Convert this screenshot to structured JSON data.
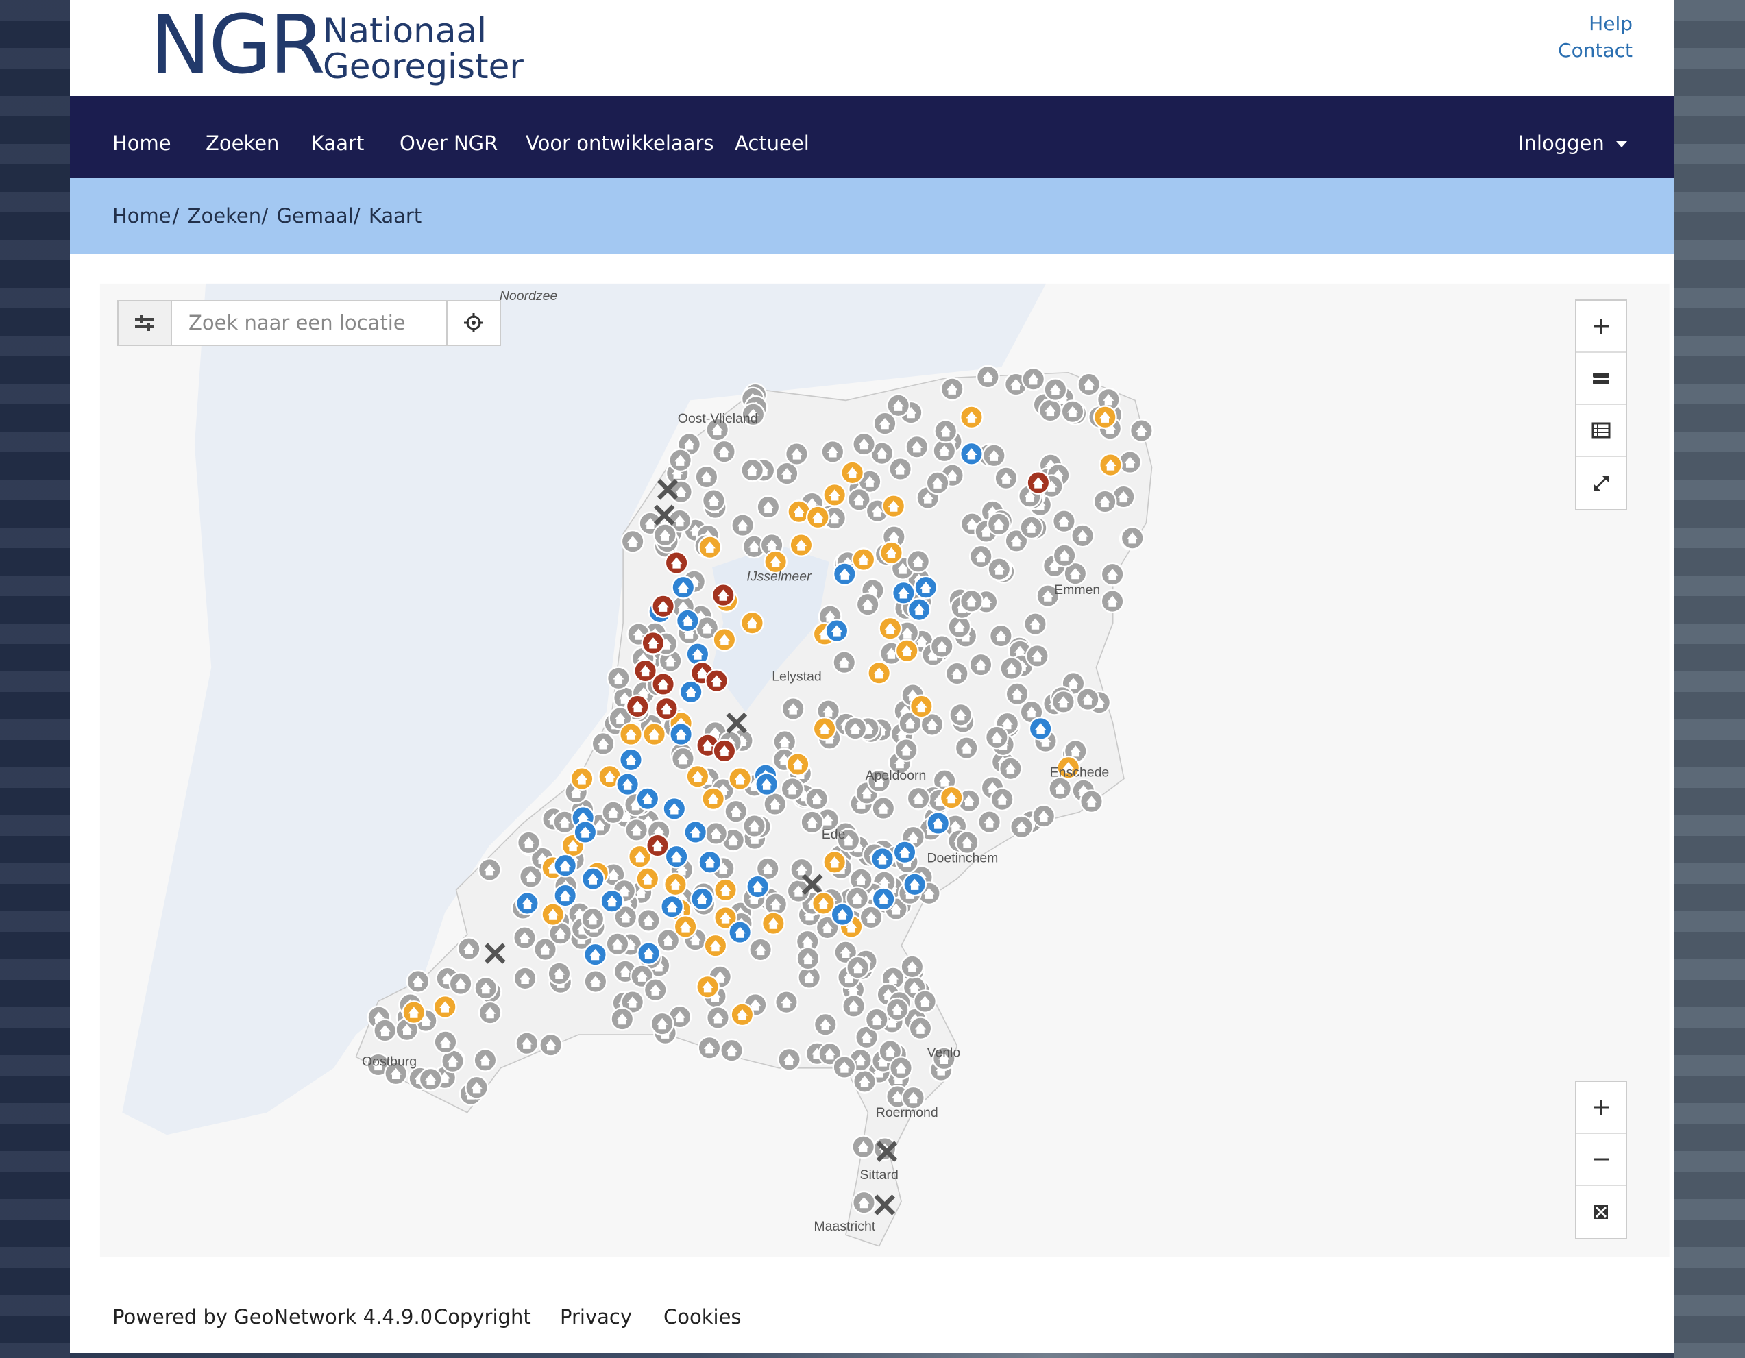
{
  "header": {
    "logo": "NGR",
    "logo_line1": "Nationaal",
    "logo_line2": "Georegister",
    "links": [
      "Help",
      "Contact"
    ]
  },
  "nav": {
    "items": [
      "Home",
      "Zoeken",
      "Kaart",
      "Over NGR",
      "Voor ontwikkelaars",
      "Actueel"
    ],
    "active": "Kaart",
    "login": "Inloggen"
  },
  "breadcrumb": {
    "items": [
      "Home",
      "Zoeken",
      "Gemaal",
      "Kaart"
    ],
    "separator": "/"
  },
  "map": {
    "search_placeholder": "Zoek naar een locatie",
    "labels": [
      "Noordzee",
      "Oost-Vlieland",
      "IJsselmeer",
      "Lelystad",
      "Apeldoorn",
      "Ede",
      "Doetinchem",
      "Enschede",
      "Emmen",
      "Venlo",
      "Roermond",
      "Sittard",
      "Maastricht",
      "Oostburg"
    ]
  },
  "footer": {
    "items": [
      "Powered by GeoNetwork 4.4.9.0",
      "Copyright",
      "Privacy",
      "Cookies"
    ]
  }
}
